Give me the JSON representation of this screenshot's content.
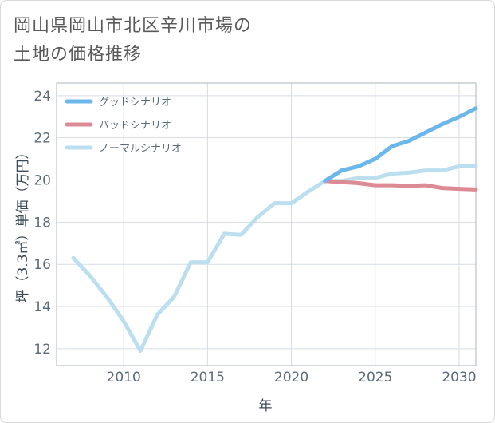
{
  "title_lines": [
    "岡山県岡山市北区辛川市場の",
    "土地の価格推移"
  ],
  "chart_data": {
    "type": "line",
    "title": "岡山県岡山市北区辛川市場の土地の価格推移",
    "xlabel": "年",
    "ylabel": "坪（3.3㎡）単価（万円）",
    "xlim": [
      2006,
      2031
    ],
    "ylim": [
      11.2,
      24.6
    ],
    "xticks": [
      2010,
      2015,
      2020,
      2025,
      2030
    ],
    "yticks": [
      12,
      14,
      16,
      18,
      20,
      22,
      24
    ],
    "grid": true,
    "legend_position": "top-left",
    "series": [
      {
        "name": "グッドシナリオ",
        "color": "#6cb7ea",
        "x": [
          2022,
          2023,
          2024,
          2025,
          2026,
          2027,
          2028,
          2029,
          2030,
          2031
        ],
        "y": [
          19.95,
          20.45,
          20.65,
          21.0,
          21.6,
          21.85,
          22.25,
          22.65,
          23.0,
          23.4
        ]
      },
      {
        "name": "バッドシナリオ",
        "color": "#dc8a94",
        "x": [
          2022,
          2023,
          2024,
          2025,
          2026,
          2027,
          2028,
          2029,
          2030,
          2031
        ],
        "y": [
          19.95,
          19.9,
          19.85,
          19.75,
          19.75,
          19.72,
          19.75,
          19.62,
          19.58,
          19.55
        ]
      },
      {
        "name": "ノーマルシナリオ",
        "color": "#bcdfef",
        "x": [
          2007,
          2008,
          2009,
          2010,
          2011,
          2012,
          2013,
          2014,
          2015,
          2016,
          2017,
          2018,
          2019,
          2020,
          2021,
          2022,
          2023,
          2024,
          2025,
          2026,
          2027,
          2028,
          2029,
          2030,
          2031
        ],
        "y": [
          16.3,
          15.45,
          14.45,
          13.3,
          11.9,
          13.6,
          14.45,
          16.1,
          16.1,
          17.45,
          17.4,
          18.25,
          18.9,
          18.9,
          19.45,
          19.95,
          19.95,
          20.1,
          20.1,
          20.3,
          20.35,
          20.45,
          20.45,
          20.65,
          20.65
        ]
      }
    ]
  }
}
